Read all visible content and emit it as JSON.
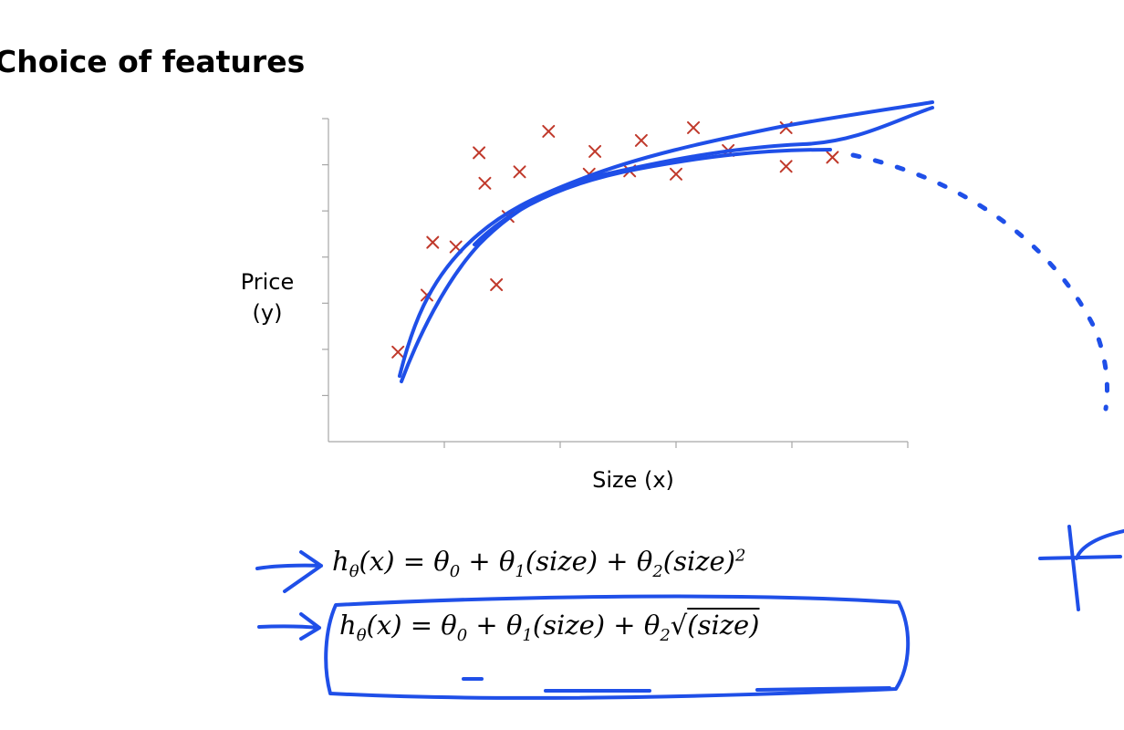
{
  "slide": {
    "title": "Choice of features"
  },
  "chart_data": {
    "type": "scatter",
    "title": "",
    "xlabel": "Size (x)",
    "ylabel_lines": [
      "Price",
      "(y)"
    ],
    "marker": "x",
    "marker_color": "#c0392b",
    "points": [
      {
        "x": 0.6,
        "y": 1.97
      },
      {
        "x": 0.85,
        "y": 3.22
      },
      {
        "x": 0.9,
        "y": 4.38
      },
      {
        "x": 1.1,
        "y": 4.28
      },
      {
        "x": 1.3,
        "y": 6.35
      },
      {
        "x": 1.35,
        "y": 5.68
      },
      {
        "x": 1.45,
        "y": 3.45
      },
      {
        "x": 1.55,
        "y": 4.95
      },
      {
        "x": 1.65,
        "y": 5.93
      },
      {
        "x": 1.9,
        "y": 6.82
      },
      {
        "x": 2.25,
        "y": 5.88
      },
      {
        "x": 2.3,
        "y": 6.38
      },
      {
        "x": 2.6,
        "y": 5.95
      },
      {
        "x": 2.7,
        "y": 6.62
      },
      {
        "x": 3.0,
        "y": 5.88
      },
      {
        "x": 3.15,
        "y": 6.9
      },
      {
        "x": 3.45,
        "y": 6.4
      },
      {
        "x": 3.95,
        "y": 6.05
      },
      {
        "x": 3.95,
        "y": 6.9
      },
      {
        "x": 4.35,
        "y": 6.25
      }
    ],
    "x_ticks": 5,
    "y_ticks": 7,
    "xlim": [
      0,
      5
    ],
    "ylim": [
      0,
      7.1
    ],
    "grid": false,
    "legend": false
  },
  "annotations": {
    "ink_color": "#1f4fe8"
  },
  "equations": [
    {
      "lhs_h": "h",
      "lhs_sub": "θ",
      "lhs_arg": "(x)",
      "eq": " = ",
      "t0": "θ",
      "t0_sub": "0",
      "plus1": " + ",
      "t1": "θ",
      "t1_sub": "1",
      "t1_arg": "(size)",
      "plus2": " + ",
      "t2": "θ",
      "t2_sub": "2",
      "t2_arg": "(size)",
      "t2_sup": "2"
    },
    {
      "lhs_h": "h",
      "lhs_sub": "θ",
      "lhs_arg": "(x)",
      "eq": " = ",
      "t0": "θ",
      "t0_sub": "0",
      "plus1": " + ",
      "t1": "θ",
      "t1_sub": "1",
      "t1_arg": "(size)",
      "plus2": " + ",
      "t2": "θ",
      "t2_sub": "2",
      "radical": "√",
      "radicand": "(size)"
    }
  ]
}
